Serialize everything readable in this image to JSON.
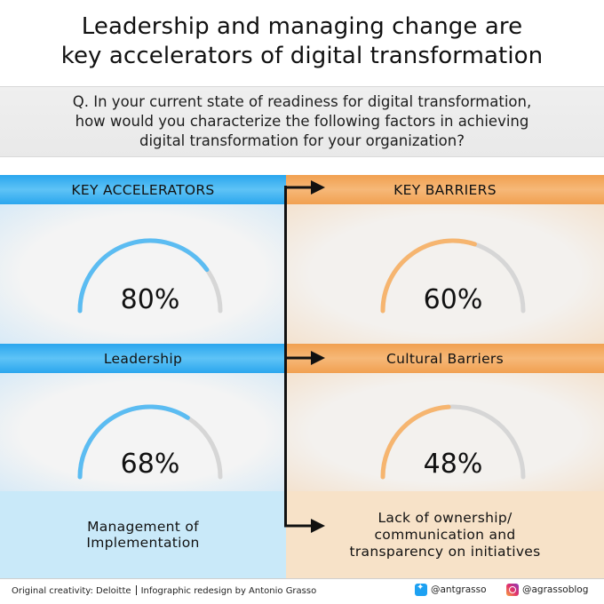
{
  "header": {
    "title_line1": "Leadership and managing change are",
    "title_line2": "key accelerators of digital transformation"
  },
  "question": {
    "line1": "Q. In your current state of readiness for digital transformation,",
    "line2": "how would you characterize the following factors in achieving",
    "line3": "digital transformation for your organization?"
  },
  "accelerators": {
    "heading": "KEY ACCELERATORS",
    "items": [
      {
        "label": "Leadership",
        "percent_label": "80%",
        "value": 80
      },
      {
        "label_line1": "Management of",
        "label_line2": "Implementation",
        "percent_label": "68%",
        "value": 68
      }
    ],
    "color": "#5bbcf2"
  },
  "barriers": {
    "heading": "KEY BARRIERS",
    "items": [
      {
        "label": "Cultural Barriers",
        "percent_label": "60%",
        "value": 60
      },
      {
        "label_line1": "Lack of ownership/",
        "label_line2": "communication and",
        "label_line3": "transparency on initiatives",
        "percent_label": "48%",
        "value": 48
      }
    ],
    "color": "#f6b56f"
  },
  "gauge_track_color": "#d6d6d6",
  "footer": {
    "credit_left": "Original creativity: Deloitte",
    "credit_right": "Infographic redesign by Antonio Grasso",
    "twitter": "@antgrasso",
    "instagram": "@agrassoblog",
    "twitter_icon": "twitter-icon",
    "instagram_icon": "instagram-icon"
  }
}
